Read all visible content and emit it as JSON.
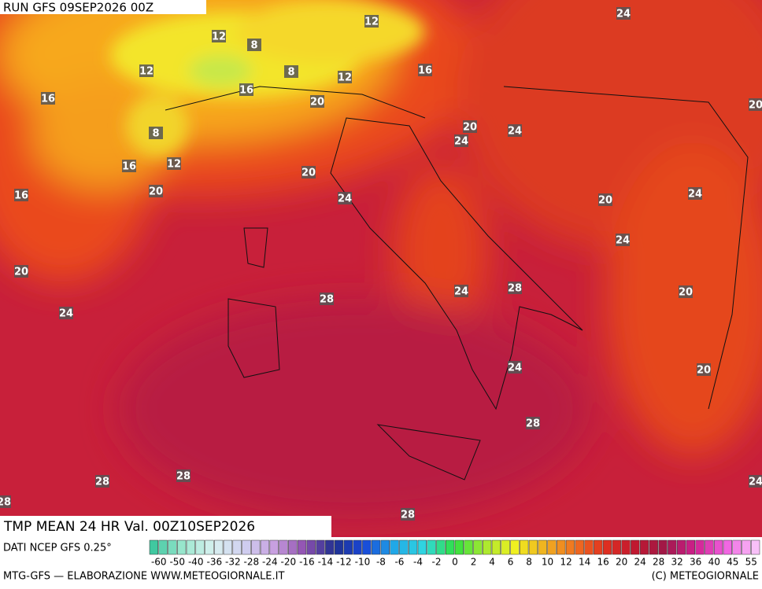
{
  "header": {
    "run": "RUN GFS 09SEP2026 00Z"
  },
  "map": {
    "title": "TMP MEAN 24 HR Val. 00Z10SEP2026",
    "contour_labels": [
      24,
      12,
      12,
      8,
      12,
      8,
      12,
      16,
      16,
      16,
      20,
      20,
      20,
      24,
      8,
      24,
      16,
      12,
      20,
      20,
      24,
      16,
      20,
      24,
      24,
      20,
      28,
      24,
      20,
      28,
      24,
      24,
      20,
      28,
      28,
      28,
      24,
      28,
      28
    ]
  },
  "legend": {
    "ticks": [
      -60,
      -50,
      -40,
      -36,
      -32,
      -28,
      -24,
      -20,
      -16,
      -14,
      -12,
      -10,
      -8,
      -6,
      -4,
      -2,
      0,
      2,
      4,
      6,
      8,
      10,
      12,
      14,
      16,
      20,
      24,
      28,
      32,
      36,
      40,
      45,
      55
    ]
  },
  "footer": {
    "source": "DATI NCEP GFS 0.25°",
    "credit": "MTG-GFS — ELABORAZIONE WWW.METEOGIORNALE.IT",
    "copyright": "(C) METEOGIORNALE"
  }
}
